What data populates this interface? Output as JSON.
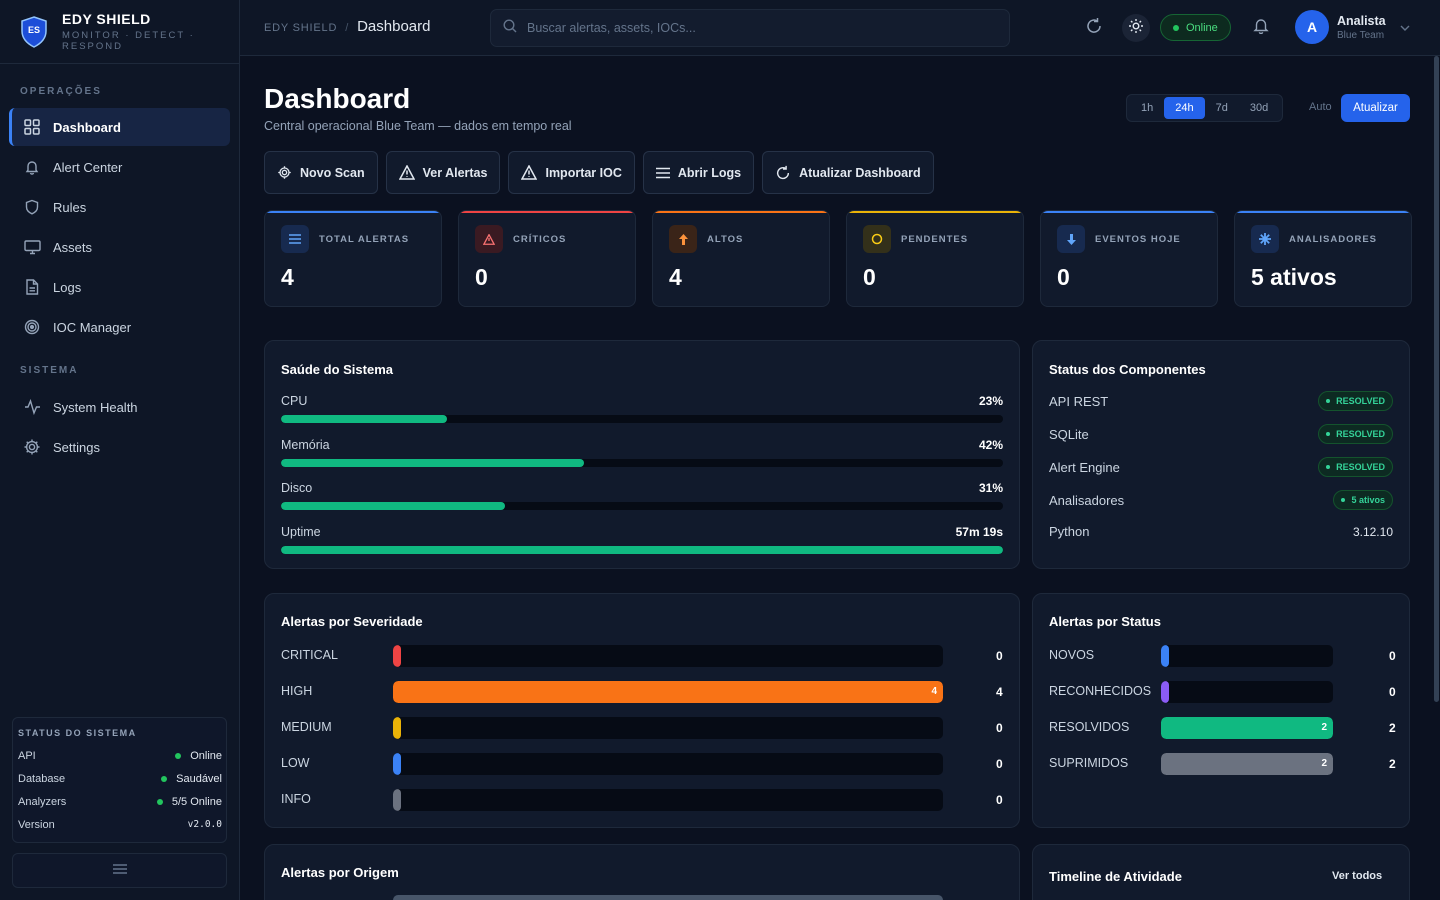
{
  "brand": {
    "logo_text": "ES",
    "title": "EDY SHIELD",
    "tagline": "MONITOR · DETECT · RESPOND"
  },
  "sidebar": {
    "section_ops": "OPERAÇÕES",
    "ops_items": [
      {
        "label": "Dashboard",
        "icon": "grid-icon",
        "active": true
      },
      {
        "label": "Alert Center",
        "icon": "bell-icon"
      },
      {
        "label": "Rules",
        "icon": "shield-icon"
      },
      {
        "label": "Assets",
        "icon": "monitor-icon"
      },
      {
        "label": "Logs",
        "icon": "file-icon"
      },
      {
        "label": "IOC Manager",
        "icon": "target-icon"
      }
    ],
    "section_sys": "SISTEMA",
    "sys_items": [
      {
        "label": "System Health",
        "icon": "activity-icon"
      },
      {
        "label": "Settings",
        "icon": "gear-icon"
      }
    ],
    "status": {
      "title": "STATUS DO SISTEMA",
      "rows": [
        {
          "label": "API",
          "value": "Online"
        },
        {
          "label": "Database",
          "value": "Saudável"
        },
        {
          "label": "Analyzers",
          "value": "5/5 Online"
        },
        {
          "label": "Version",
          "value": "v2.0.0"
        }
      ]
    }
  },
  "topbar": {
    "crumb_root": "EDY SHIELD",
    "crumb_sep": "/",
    "crumb_current": "Dashboard",
    "search_placeholder": "Buscar alertas, assets, IOCs...",
    "online_label": "Online",
    "user_initial": "A",
    "user_name": "Analista",
    "user_role": "Blue Team"
  },
  "page": {
    "title": "Dashboard",
    "subtitle": "Central operacional Blue Team — dados em tempo real",
    "ranges": [
      "1h",
      "24h",
      "7d",
      "30d"
    ],
    "active_range": "24h",
    "auto_label": "Auto",
    "refresh_label": "Atualizar"
  },
  "actions": [
    "Novo Scan",
    "Ver Alertas",
    "Importar IOC",
    "Abrir Logs",
    "Atualizar Dashboard"
  ],
  "kpis": [
    {
      "label": "TOTAL ALERTAS",
      "value": "4",
      "color": "#3b82f6",
      "icon": "list-icon"
    },
    {
      "label": "CRÍTICOS",
      "value": "0",
      "color": "#ef4444",
      "icon": "warning-icon"
    },
    {
      "label": "ALTOS",
      "value": "4",
      "color": "#f97316",
      "icon": "arrow-up-icon"
    },
    {
      "label": "PENDENTES",
      "value": "0",
      "color": "#eab308",
      "icon": "circle-icon"
    },
    {
      "label": "EVENTOS HOJE",
      "value": "0",
      "color": "#3b82f6",
      "icon": "arrow-down-icon"
    },
    {
      "label": "ANALISADORES",
      "value": "5 ativos",
      "color": "#3b82f6",
      "icon": "star-icon"
    }
  ],
  "health": {
    "title": "Saúde do Sistema",
    "metrics": [
      {
        "label": "CPU",
        "value": "23%",
        "pct": 23
      },
      {
        "label": "Memória",
        "value": "42%",
        "pct": 42
      },
      {
        "label": "Disco",
        "value": "31%",
        "pct": 31
      },
      {
        "label": "Uptime",
        "value": "57m 19s",
        "pct": 100
      }
    ]
  },
  "components": {
    "title": "Status dos Componentes",
    "rows": [
      {
        "label": "API REST",
        "badge": "RESOLVED"
      },
      {
        "label": "SQLite",
        "badge": "RESOLVED"
      },
      {
        "label": "Alert Engine",
        "badge": "RESOLVED"
      },
      {
        "label": "Analisadores",
        "badge": "5 ativos"
      },
      {
        "label": "Python",
        "text": "3.12.10"
      }
    ]
  },
  "severity": {
    "title": "Alertas por Severidade",
    "rows": [
      {
        "label": "CRITICAL",
        "count": "0",
        "value": 0,
        "color": "#ef4444"
      },
      {
        "label": "HIGH",
        "count": "4",
        "value": 4,
        "color": "#f97316",
        "inbar": "4"
      },
      {
        "label": "MEDIUM",
        "count": "0",
        "value": 0,
        "color": "#eab308"
      },
      {
        "label": "LOW",
        "count": "0",
        "value": 0,
        "color": "#3b82f6"
      },
      {
        "label": "INFO",
        "count": "0",
        "value": 0,
        "color": "#6b7280"
      }
    ]
  },
  "status_chart": {
    "title": "Alertas por Status",
    "rows": [
      {
        "label": "NOVOS",
        "count": "0",
        "value": 0,
        "color": "#3b82f6"
      },
      {
        "label": "RECONHECIDOS",
        "count": "0",
        "value": 0,
        "color": "#8b5cf6"
      },
      {
        "label": "RESOLVIDOS",
        "count": "2",
        "value": 2,
        "color": "#10b981",
        "inbar": "2"
      },
      {
        "label": "SUPRIMIDOS",
        "count": "2",
        "value": 2,
        "color": "#6b7280",
        "inbar": "2"
      }
    ]
  },
  "origin": {
    "title": "Alertas por Origem"
  },
  "timeline": {
    "title": "Timeline de Atividade",
    "link": "Ver todos"
  }
}
